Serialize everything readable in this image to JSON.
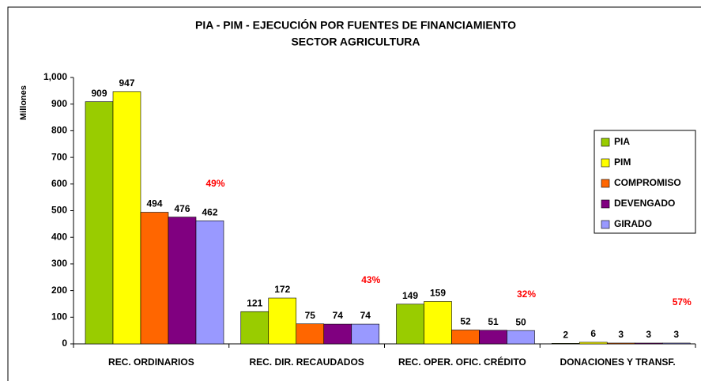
{
  "chart_data": {
    "type": "bar",
    "title": [
      "PIA - PIM - EJECUCIÓN POR FUENTES DE FINANCIAMIENTO",
      "SECTOR AGRICULTURA"
    ],
    "ylabel": "Millones",
    "categories": [
      "REC. ORDINARIOS",
      "REC. DIR. RECAUDADOS",
      "REC. OPER. OFIC. CRÉDITO",
      "DONACIONES Y TRANSF."
    ],
    "series": [
      {
        "name": "PIA",
        "color": "#99cc00",
        "values": [
          909,
          121,
          149,
          2
        ]
      },
      {
        "name": "PIM",
        "color": "#ffff00",
        "values": [
          947,
          172,
          159,
          6
        ]
      },
      {
        "name": "COMPROMISO",
        "color": "#ff6600",
        "values": [
          494,
          75,
          52,
          3
        ]
      },
      {
        "name": "DEVENGADO",
        "color": "#800080",
        "values": [
          476,
          74,
          51,
          3
        ]
      },
      {
        "name": "GIRADO",
        "color": "#9999ff",
        "values": [
          462,
          74,
          50,
          3
        ]
      }
    ],
    "annotations": [
      "49%",
      "43%",
      "32%",
      "57%"
    ],
    "annotation_color": "#ff0000",
    "ylim": [
      0,
      1000
    ],
    "yticks": [
      0,
      100,
      200,
      300,
      400,
      500,
      600,
      700,
      800,
      900,
      {
        "value": 1000,
        "label": "1,000"
      }
    ],
    "grid": false,
    "legend": "right"
  }
}
